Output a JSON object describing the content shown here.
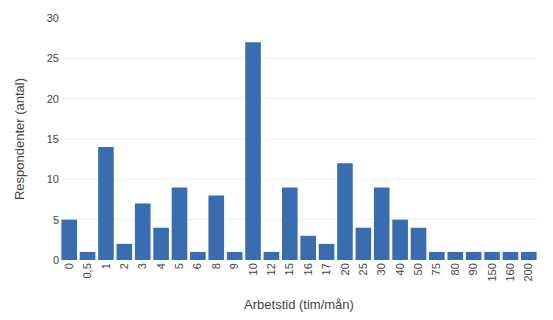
{
  "chart_data": {
    "type": "bar",
    "categories": [
      "0",
      "0,5",
      "1",
      "2",
      "3",
      "4",
      "5",
      "6",
      "8",
      "9",
      "10",
      "12",
      "15",
      "16",
      "17",
      "20",
      "25",
      "30",
      "40",
      "50",
      "75",
      "80",
      "90",
      "150",
      "160",
      "200"
    ],
    "values": [
      5,
      1,
      14,
      2,
      7,
      4,
      9,
      1,
      8,
      1,
      27,
      1,
      9,
      3,
      2,
      12,
      4,
      9,
      5,
      4,
      1,
      1,
      1,
      1,
      1,
      1
    ],
    "color": "#3A6DB0",
    "xlabel": "Arbetstid (tim/mån)",
    "ylabel": "Respondenter (antal)",
    "ylim": [
      0,
      30
    ],
    "yticks": [
      0,
      5,
      10,
      15,
      20,
      25,
      30
    ],
    "grid": true
  }
}
